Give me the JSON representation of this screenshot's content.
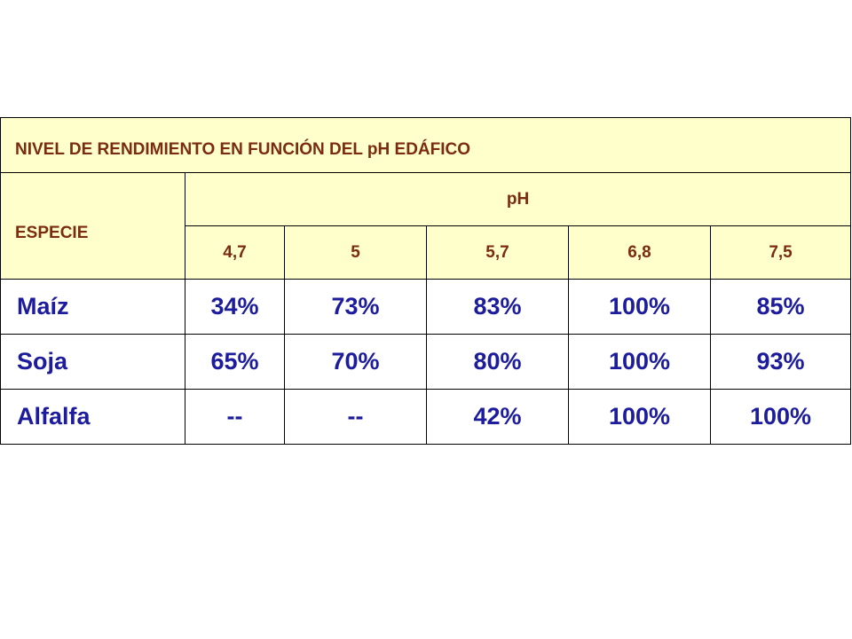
{
  "table": {
    "title": "NIVEL DE RENDIMIENTO EN FUNCIÓN DEL pH EDÁFICO",
    "species_header": "ESPECIE",
    "ph_header": "pH",
    "ph_values": [
      "4,7",
      "5",
      "5,7",
      "6,8",
      "7,5"
    ],
    "rows": [
      {
        "species": "Maíz",
        "values": [
          "34%",
          "73%",
          "83%",
          "100%",
          "85%"
        ]
      },
      {
        "species": "Soja",
        "values": [
          "65%",
          "70%",
          "80%",
          "100%",
          "93%"
        ]
      },
      {
        "species": "Alfalfa",
        "values": [
          "--",
          "--",
          "42%",
          "100%",
          "100%"
        ]
      }
    ]
  },
  "colors": {
    "header_background": "#ffffcc",
    "header_text": "#7b2c10",
    "data_text": "#1c1c9c",
    "border": "#000000"
  }
}
